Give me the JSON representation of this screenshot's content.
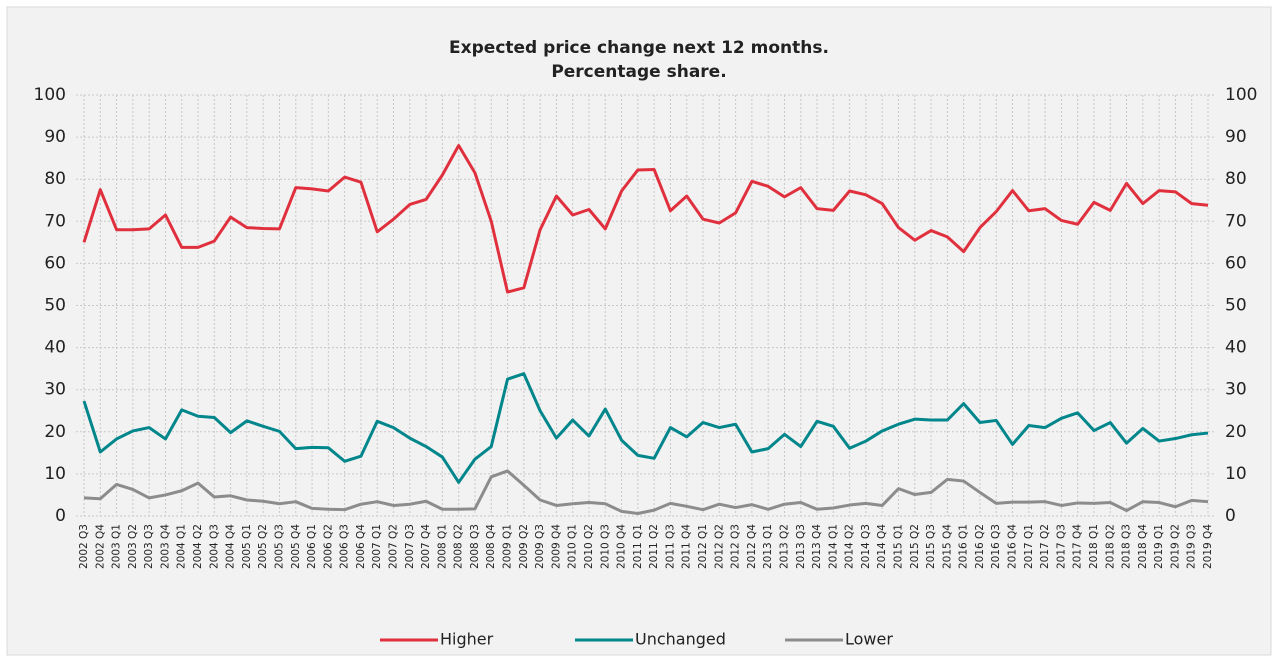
{
  "chart_data": {
    "type": "line",
    "title": [
      "Expected price change next 12 months.",
      "Percentage share."
    ],
    "categories": [
      "2002 Q3",
      "2002 Q4",
      "2003 Q1",
      "2003 Q2",
      "2003 Q3",
      "2003 Q4",
      "2004 Q1",
      "2004 Q2",
      "2004 Q3",
      "2004 Q4",
      "2005 Q1",
      "2005 Q2",
      "2005 Q3",
      "2005 Q4",
      "2006 Q1",
      "2006 Q2",
      "2006 Q3",
      "2006 Q4",
      "2007 Q1",
      "2007 Q2",
      "2007 Q3",
      "2007 Q4",
      "2008 Q1",
      "2008 Q2",
      "2008 Q3",
      "2008 Q4",
      "2009 Q1",
      "2009 Q2",
      "2009 Q3",
      "2009 Q4",
      "2010 Q1",
      "2010 Q2",
      "2010 Q3",
      "2010 Q4",
      "2011 Q1",
      "2011 Q2",
      "2011 Q3",
      "2011 Q4",
      "2012 Q1",
      "2012 Q2",
      "2012 Q3",
      "2012 Q4",
      "2013 Q1",
      "2013 Q2",
      "2013 Q3",
      "2013 Q4",
      "2014 Q1",
      "2014 Q2",
      "2014 Q3",
      "2014 Q4",
      "2015 Q1",
      "2015 Q2",
      "2015 Q3",
      "2015 Q4",
      "2016 Q1",
      "2016 Q2",
      "2016 Q3",
      "2016 Q4",
      "2017 Q1",
      "2017 Q2",
      "2017 Q3",
      "2017 Q4",
      "2018 Q1",
      "2018 Q2",
      "2018 Q3",
      "2018 Q4",
      "2019 Q1",
      "2019 Q2",
      "2019 Q3",
      "2019 Q4"
    ],
    "series": [
      {
        "name": "Higher",
        "color": "#e0303d",
        "values": [
          65,
          77.5,
          68,
          68,
          68.2,
          71.5,
          63.8,
          63.8,
          65.3,
          71,
          68.5,
          68.3,
          68.2,
          78,
          77.7,
          77.2,
          80.5,
          79.3,
          67.5,
          70.5,
          74,
          75.2,
          81,
          88,
          81.5,
          70,
          53.2,
          54.2,
          68,
          76,
          71.5,
          72.8,
          68.2,
          77.2,
          82.2,
          82.3,
          72.5,
          76,
          70.5,
          69.6,
          72,
          79.5,
          78.3,
          75.8,
          78,
          73,
          72.6,
          77.2,
          76.3,
          74.2,
          68.5,
          65.5,
          67.8,
          66.3,
          62.8,
          68.5,
          72.3,
          77.3,
          72.5,
          73,
          70.2,
          69.3,
          74.5,
          72.6,
          79,
          74.2,
          77.3,
          77,
          74.2,
          73.8
        ]
      },
      {
        "name": "Unchanged",
        "color": "#00868b",
        "values": [
          27.3,
          15.2,
          18.3,
          20.2,
          21,
          18.3,
          25.2,
          23.7,
          23.4,
          19.8,
          22.6,
          21.3,
          20.1,
          16,
          16.3,
          16.2,
          13,
          14.2,
          22.5,
          21,
          18.5,
          16.5,
          14,
          8,
          13.5,
          16.5,
          32.5,
          33.8,
          25,
          18.5,
          22.8,
          19,
          25.4,
          18,
          14.4,
          13.7,
          21,
          18.8,
          22.2,
          21,
          21.8,
          15.2,
          16,
          19.4,
          16.5,
          22.5,
          21.3,
          16.1,
          17.8,
          20.2,
          21.8,
          23,
          22.8,
          22.8,
          26.7,
          22.2,
          22.7,
          17,
          21.5,
          21,
          23.2,
          24.5,
          20.3,
          22.2,
          17.3,
          20.8,
          17.8,
          18.4,
          19.3,
          19.7
        ]
      },
      {
        "name": "Lower",
        "color": "#8c8c8c",
        "values": [
          4.3,
          4.1,
          7.5,
          6.3,
          4.3,
          5,
          6,
          7.8,
          4.5,
          4.8,
          3.8,
          3.5,
          2.9,
          3.4,
          1.8,
          1.6,
          1.5,
          2.8,
          3.4,
          2.5,
          2.8,
          3.5,
          1.6,
          1.6,
          1.7,
          9.3,
          10.7,
          7.3,
          3.8,
          2.5,
          2.9,
          3.2,
          2.9,
          1.1,
          0.6,
          1.4,
          3,
          2.3,
          1.5,
          2.8,
          2,
          2.7,
          1.6,
          2.8,
          3.2,
          1.6,
          1.9,
          2.6,
          3,
          2.5,
          6.5,
          5.1,
          5.6,
          8.7,
          8.3,
          5.6,
          3,
          3.3,
          3.3,
          3.4,
          2.5,
          3.1,
          3,
          3.2,
          1.3,
          3.4,
          3.2,
          2.2,
          3.7,
          3.4
        ]
      }
    ],
    "ylim": [
      0,
      100
    ],
    "yticks": [
      0,
      10,
      20,
      30,
      40,
      50,
      60,
      70,
      80,
      90,
      100
    ],
    "y2lim": [
      0,
      100
    ],
    "y2ticks": [
      0,
      10,
      20,
      30,
      40,
      50,
      60,
      70,
      80,
      90,
      100
    ],
    "grid": true,
    "legend": "bottom"
  }
}
